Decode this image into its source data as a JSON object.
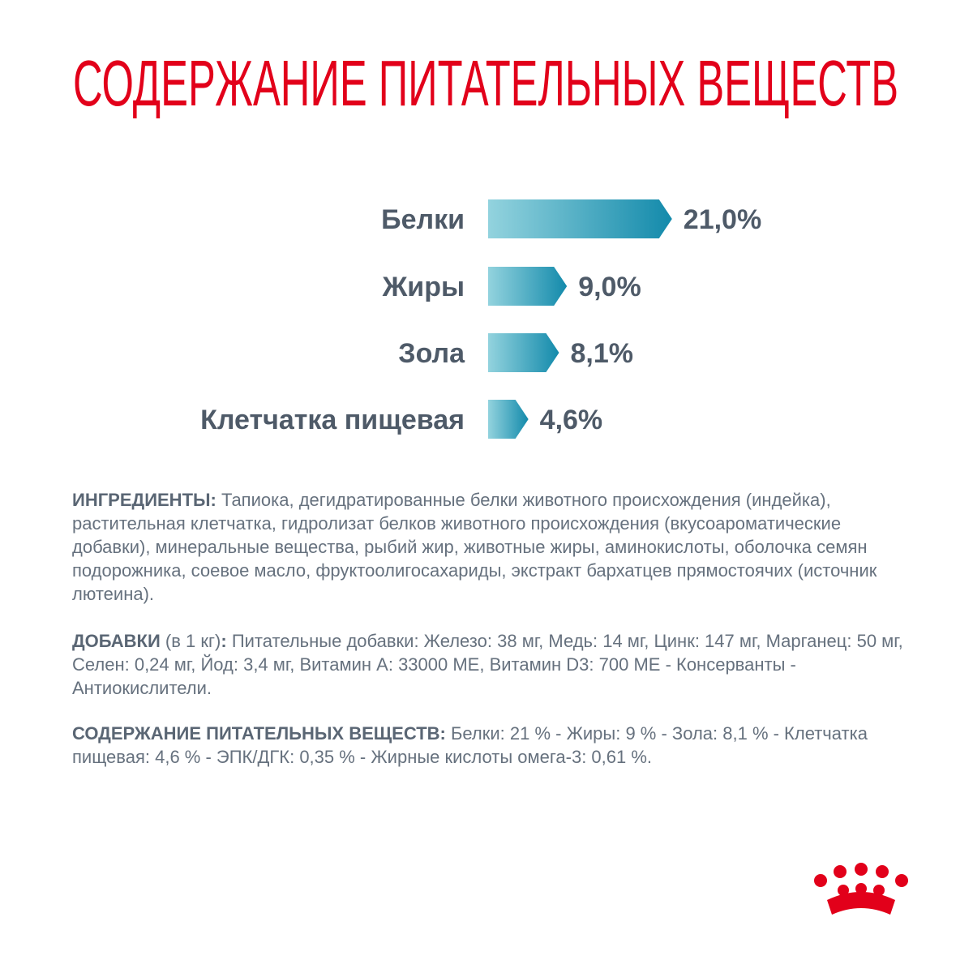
{
  "chart_data": {
    "type": "bar",
    "title": "СОДЕРЖАНИЕ ПИТАТЕЛЬНЫХ ВЕЩЕСТВ",
    "categories": [
      "Белки",
      "Жиры",
      "Зола",
      "Клетчатка пищевая"
    ],
    "values": [
      21.0,
      9.0,
      8.1,
      4.6
    ],
    "value_labels": [
      "21,0%",
      "9,0%",
      "8,1%",
      "4,6%"
    ],
    "color": "#138aab"
  },
  "ingredients": {
    "label": "ИНГРЕДИЕНТЫ:",
    "text": "Тапиока, дегидратированные белки животного происхождения (индейка), растительная клетчатка, гидролизат белков животного происхождения (вкусоароматические добавки), минеральные вещества, рыбий жир, животные жиры, аминокислоты, оболочка семян подорожника, соевое масло, фруктоолигосахариды, экстракт бархатцев прямостоячих (источник лютеина)."
  },
  "additives": {
    "label": "ДОБАВКИ",
    "note": "(в 1 кг)",
    "colon": ":",
    "text": "Питательные добавки: Железо: 38 мг, Медь: 14 мг, Цинк: 147 мг, Марганец: 50 мг, Селен: 0,24 мг, Йод: 3,4 мг, Витамин A: 33000 МЕ, Витамин D3: 700 МЕ - Консерванты - Антиокислители."
  },
  "nutrients": {
    "label": "СОДЕРЖАНИЕ ПИТАТЕЛЬНЫХ ВЕЩЕСТВ:",
    "text": "Белки: 21 % - Жиры: 9 % - Зола: 8,1 % - Клетчатка пищевая: 4,6 % - ЭПК/ДГК: 0,35 % - Жирные кислоты омега-3: 0,61 %."
  }
}
